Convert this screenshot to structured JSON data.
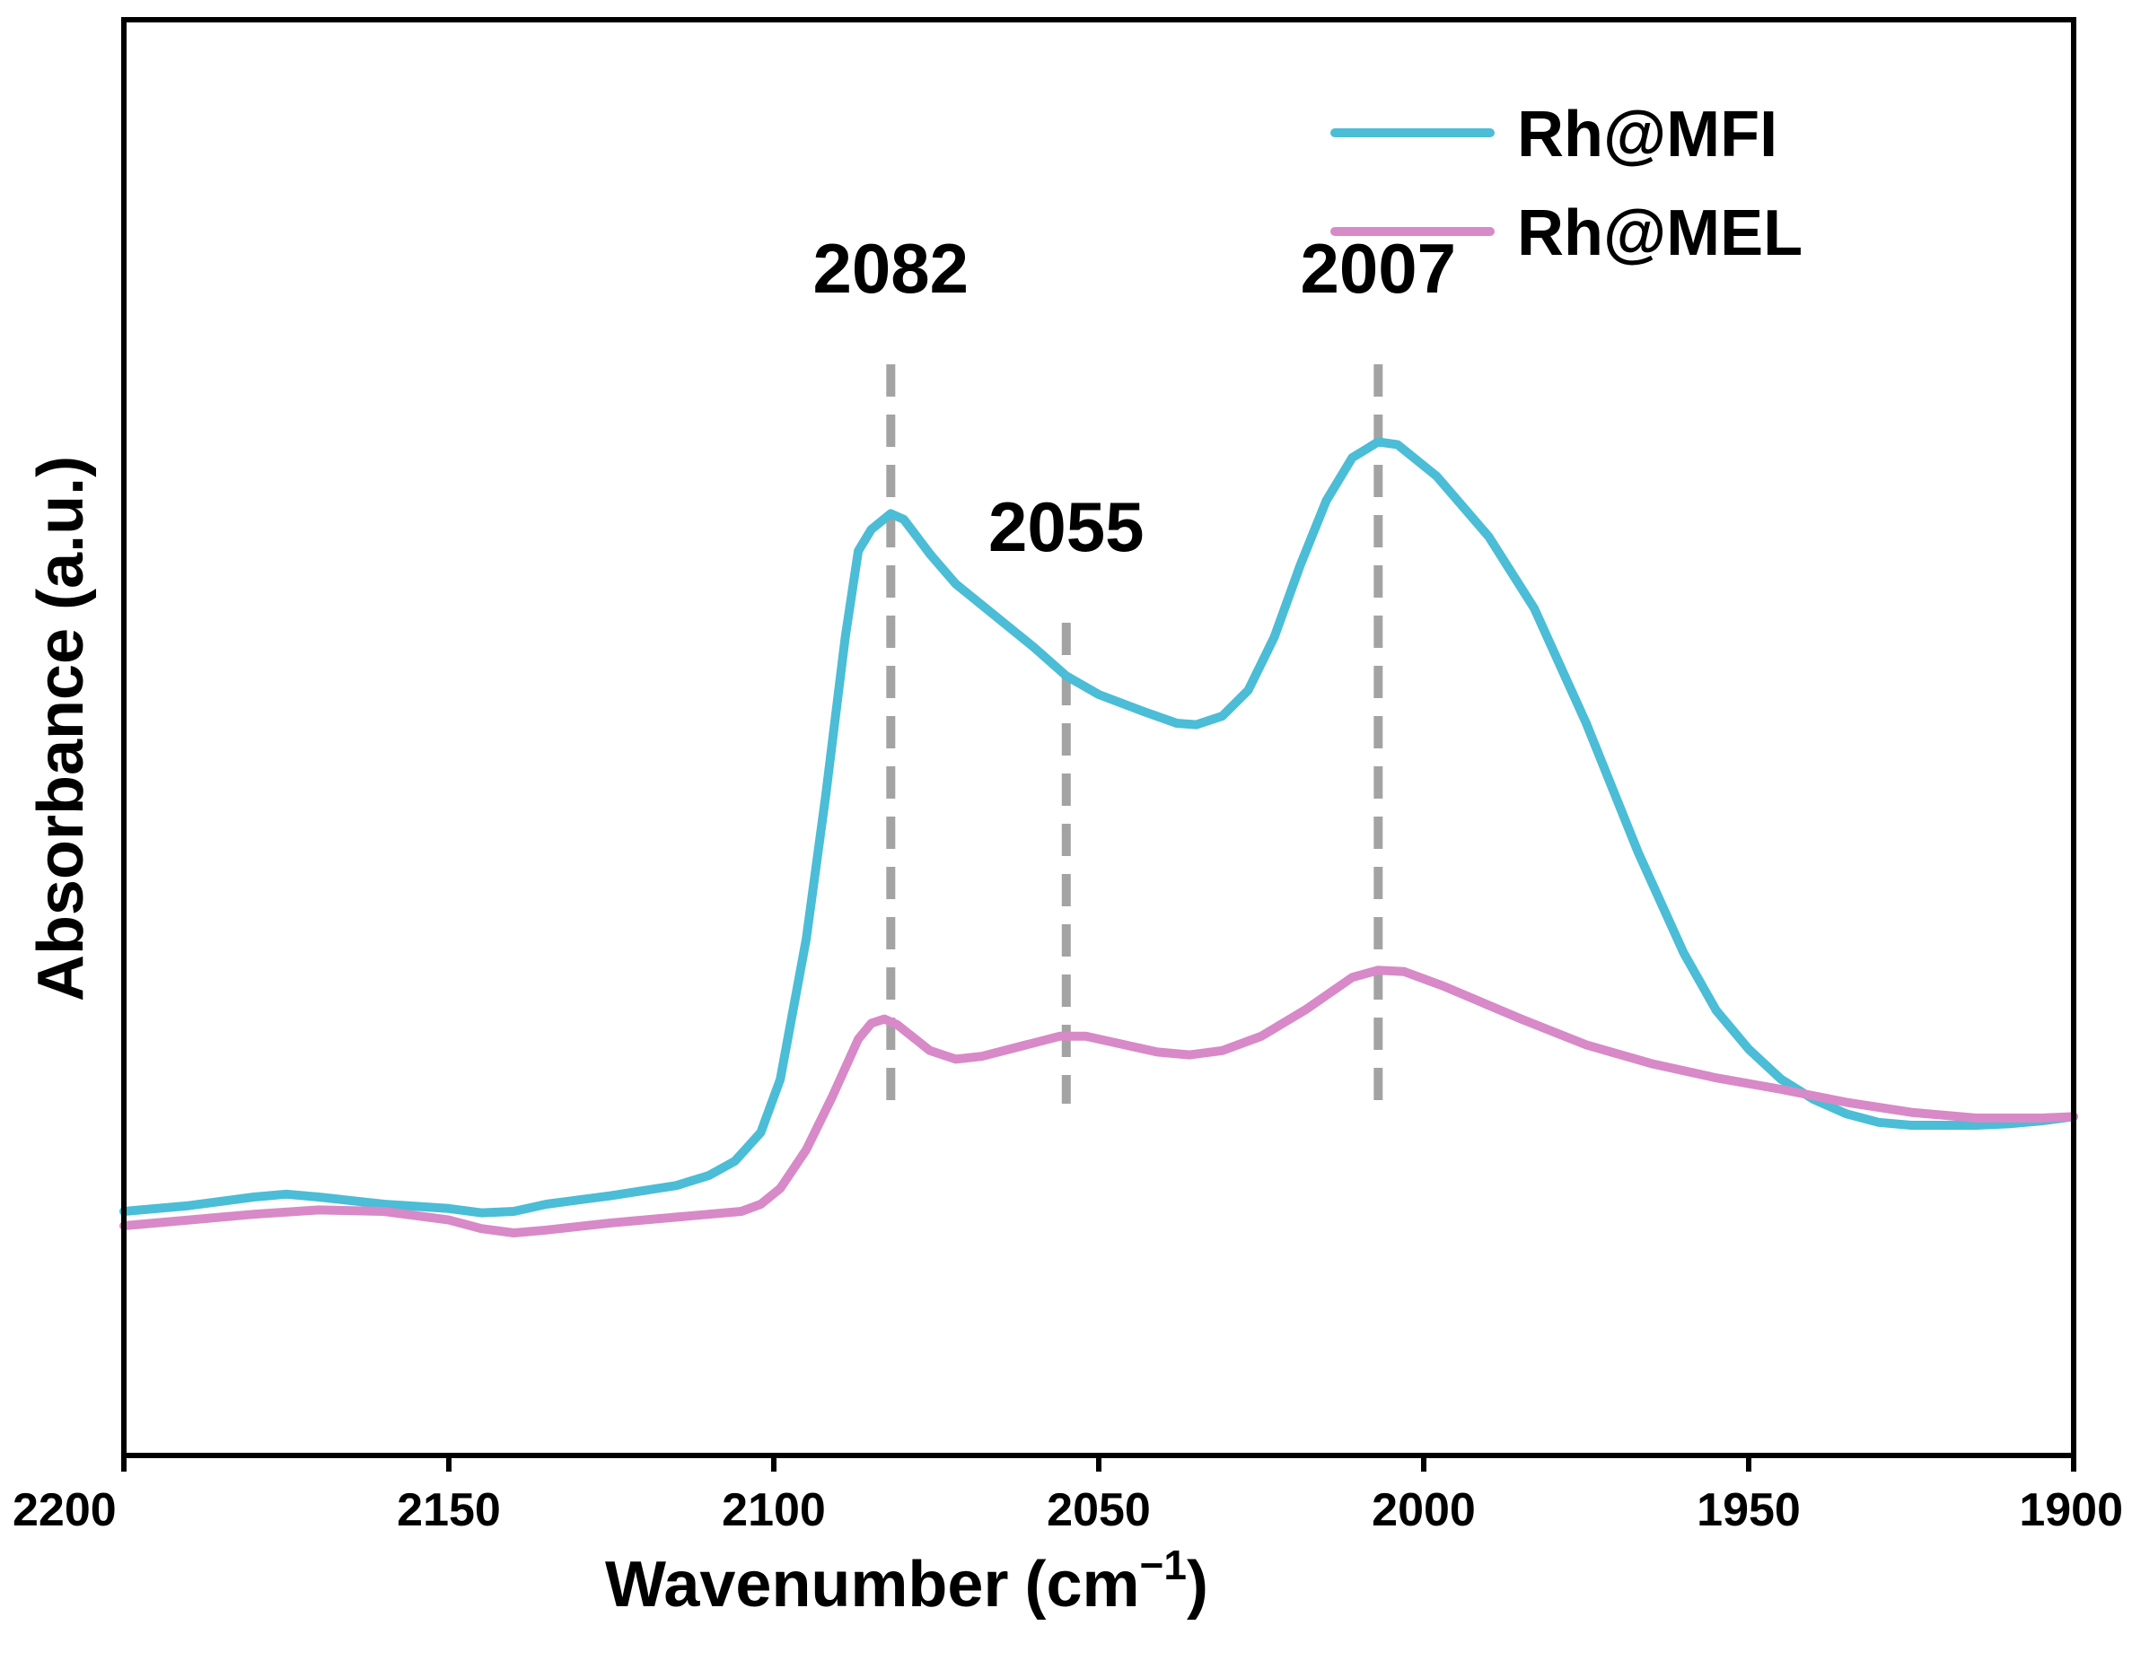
{
  "chart_data": {
    "type": "line",
    "xlabel": "Wavenumber",
    "xlabel_unit_base": "(cm",
    "xlabel_unit_exp": "−1",
    "xlabel_unit_close": ")",
    "ylabel": "Absorbance (a.u.)",
    "xlim": [
      2200,
      1900
    ],
    "ylim": [
      0,
      1
    ],
    "x_ticks": [
      2200,
      2150,
      2100,
      2050,
      2000,
      1950,
      1900
    ],
    "x_tick_labels": [
      "2200",
      "2150",
      "2100",
      "2050",
      "2000",
      "1950",
      "1900"
    ],
    "legend_position": "top-right",
    "series": [
      {
        "name": "Rh@MFI",
        "color": "#4bbdd6",
        "points": [
          [
            2200,
            0.17
          ],
          [
            2190,
            0.174
          ],
          [
            2180,
            0.18
          ],
          [
            2175,
            0.182
          ],
          [
            2170,
            0.18
          ],
          [
            2160,
            0.175
          ],
          [
            2150,
            0.172
          ],
          [
            2145,
            0.169
          ],
          [
            2140,
            0.17
          ],
          [
            2135,
            0.175
          ],
          [
            2125,
            0.181
          ],
          [
            2115,
            0.188
          ],
          [
            2110,
            0.195
          ],
          [
            2106,
            0.205
          ],
          [
            2102,
            0.225
          ],
          [
            2099,
            0.262
          ],
          [
            2095,
            0.36
          ],
          [
            2092,
            0.46
          ],
          [
            2089,
            0.57
          ],
          [
            2087,
            0.63
          ],
          [
            2085,
            0.645
          ],
          [
            2082,
            0.656
          ],
          [
            2080,
            0.652
          ],
          [
            2076,
            0.628
          ],
          [
            2072,
            0.607
          ],
          [
            2066,
            0.585
          ],
          [
            2060,
            0.563
          ],
          [
            2055,
            0.543
          ],
          [
            2050,
            0.53
          ],
          [
            2043,
            0.518
          ],
          [
            2038,
            0.51
          ],
          [
            2035,
            0.509
          ],
          [
            2031,
            0.515
          ],
          [
            2027,
            0.533
          ],
          [
            2023,
            0.57
          ],
          [
            2019,
            0.62
          ],
          [
            2015,
            0.665
          ],
          [
            2011,
            0.695
          ],
          [
            2007,
            0.706
          ],
          [
            2004,
            0.704
          ],
          [
            1998,
            0.682
          ],
          [
            1990,
            0.64
          ],
          [
            1983,
            0.59
          ],
          [
            1975,
            0.51
          ],
          [
            1967,
            0.42
          ],
          [
            1960,
            0.35
          ],
          [
            1955,
            0.31
          ],
          [
            1950,
            0.283
          ],
          [
            1945,
            0.262
          ],
          [
            1940,
            0.248
          ],
          [
            1935,
            0.238
          ],
          [
            1930,
            0.232
          ],
          [
            1925,
            0.23
          ],
          [
            1920,
            0.23
          ],
          [
            1915,
            0.23
          ],
          [
            1910,
            0.231
          ],
          [
            1905,
            0.233
          ],
          [
            1900,
            0.236
          ]
        ]
      },
      {
        "name": "Rh@MEL",
        "color": "#d889c7",
        "points": [
          [
            2200,
            0.16
          ],
          [
            2190,
            0.164
          ],
          [
            2180,
            0.168
          ],
          [
            2170,
            0.171
          ],
          [
            2160,
            0.17
          ],
          [
            2150,
            0.164
          ],
          [
            2145,
            0.158
          ],
          [
            2140,
            0.155
          ],
          [
            2135,
            0.157
          ],
          [
            2125,
            0.162
          ],
          [
            2115,
            0.166
          ],
          [
            2105,
            0.17
          ],
          [
            2102,
            0.175
          ],
          [
            2099,
            0.186
          ],
          [
            2095,
            0.213
          ],
          [
            2091,
            0.25
          ],
          [
            2087,
            0.29
          ],
          [
            2085,
            0.301
          ],
          [
            2083,
            0.304
          ],
          [
            2081,
            0.3
          ],
          [
            2076,
            0.282
          ],
          [
            2072,
            0.276
          ],
          [
            2068,
            0.278
          ],
          [
            2062,
            0.285
          ],
          [
            2056,
            0.292
          ],
          [
            2052,
            0.292
          ],
          [
            2046,
            0.286
          ],
          [
            2041,
            0.281
          ],
          [
            2036,
            0.279
          ],
          [
            2031,
            0.282
          ],
          [
            2025,
            0.292
          ],
          [
            2018,
            0.311
          ],
          [
            2011,
            0.333
          ],
          [
            2007,
            0.338
          ],
          [
            2003,
            0.337
          ],
          [
            1997,
            0.327
          ],
          [
            1985,
            0.304
          ],
          [
            1975,
            0.286
          ],
          [
            1965,
            0.273
          ],
          [
            1955,
            0.263
          ],
          [
            1945,
            0.255
          ],
          [
            1935,
            0.246
          ],
          [
            1925,
            0.239
          ],
          [
            1915,
            0.235
          ],
          [
            1905,
            0.235
          ],
          [
            1900,
            0.236
          ]
        ]
      }
    ],
    "annotations": [
      {
        "label": "2082",
        "x": 2082,
        "y_top": 0.76,
        "y_bottom": 0.245,
        "text_y": 0.81
      },
      {
        "label": "2055",
        "x": 2055,
        "y_top": 0.58,
        "y_bottom": 0.245,
        "text_y": 0.63
      },
      {
        "label": "2007",
        "x": 2007,
        "y_top": 0.76,
        "y_bottom": 0.245,
        "text_y": 0.81
      }
    ],
    "annotation_line_color": "#a3a3a3"
  }
}
